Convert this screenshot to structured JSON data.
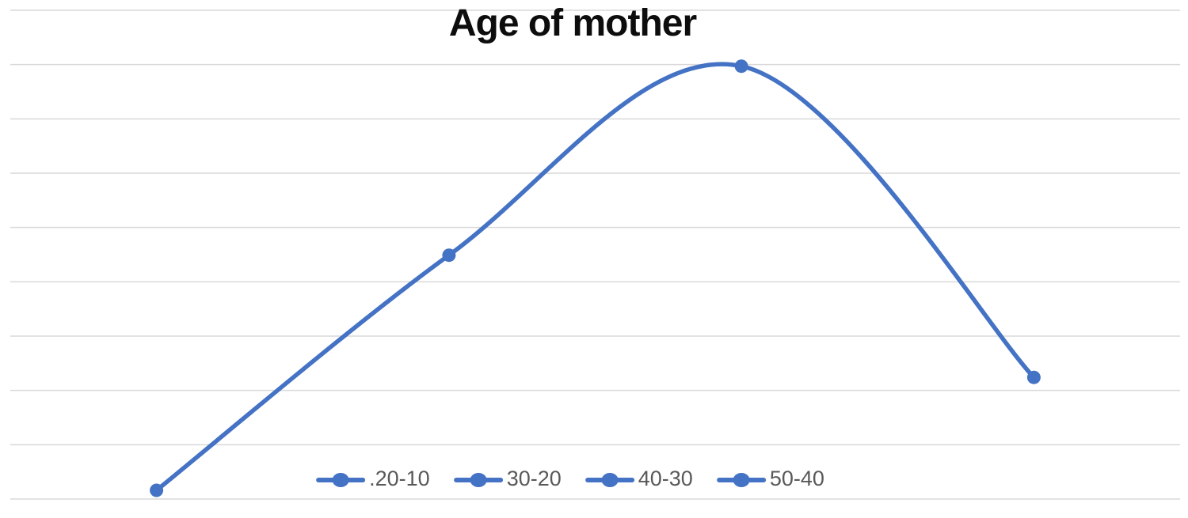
{
  "chart_data": {
    "type": "line",
    "title": "Age of mother",
    "categories": [
      ".20-10",
      "30-20",
      "40-30",
      "50-40"
    ],
    "series": [
      {
        "name": "Age of mother",
        "values": [
          0.16,
          4.49,
          7.97,
          2.24
        ]
      }
    ],
    "xlabel": "",
    "ylabel": "",
    "ylim": [
      0,
      9
    ],
    "axis_tick_labels_visible": false,
    "gridlines": {
      "horizontal_count": 10,
      "labeled": false
    },
    "legend_position": "bottom-center",
    "smooth_line": true,
    "markers": true,
    "colors": {
      "line": "#4472C4",
      "marker": "#4472C4",
      "gridline": "#D9D9D9",
      "legend_text": "#595959",
      "title": "#0d0d0d",
      "background": "#FFFFFF"
    }
  }
}
